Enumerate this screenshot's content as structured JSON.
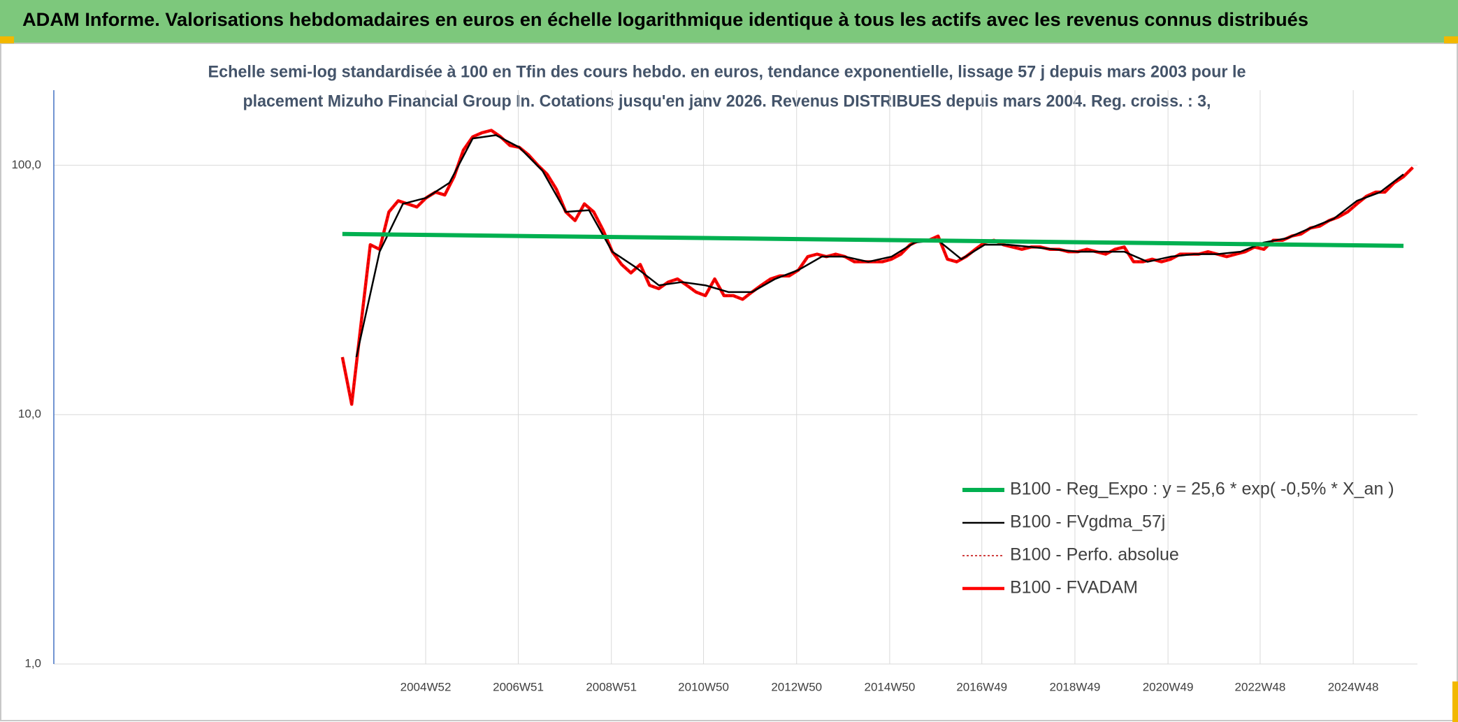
{
  "chart_data": {
    "type": "line",
    "title": "ADAM Informe. Valorisations hebdomadaires en euros en échelle logarithmique identique à tous les actifs avec les revenus connus distribués",
    "subtitle": [
      "Echelle semi-log standardisée à 100 en Tfin des cours hebdo. en euros, tendance exponentielle, lissage 57 j depuis mars 2003 pour le",
      "placement Mizuho Financial Group In. Cotations jusqu'en janv 2026. Revenus DISTRIBUES depuis mars 2004. Reg. croiss. : 3,"
    ],
    "log_scale": true,
    "grid": true,
    "legend": "lower right",
    "xlim": [
      1997,
      2026.3
    ],
    "ylim": [
      1,
      200
    ],
    "yticks": [
      {
        "value": 1,
        "label": "1,0"
      },
      {
        "value": 10,
        "label": "10,0"
      },
      {
        "value": 100,
        "label": "100,0"
      }
    ],
    "xticks": [
      {
        "value": 2004.99,
        "label": "2004W52"
      },
      {
        "value": 2006.98,
        "label": "2006W51"
      },
      {
        "value": 2008.98,
        "label": "2008W51"
      },
      {
        "value": 2010.96,
        "label": "2010W50"
      },
      {
        "value": 2012.96,
        "label": "2012W50"
      },
      {
        "value": 2014.96,
        "label": "2014W50"
      },
      {
        "value": 2016.94,
        "label": "2016W49"
      },
      {
        "value": 2018.94,
        "label": "2018W49"
      },
      {
        "value": 2020.94,
        "label": "2020W49"
      },
      {
        "value": 2022.92,
        "label": "2022W48"
      },
      {
        "value": 2024.92,
        "label": "2024W48"
      }
    ],
    "x": [
      2003.2,
      2003.4,
      2003.6,
      2003.8,
      2004,
      2004.2,
      2004.4,
      2004.6,
      2004.8,
      2005,
      2005.2,
      2005.4,
      2005.6,
      2005.8,
      2006,
      2006.2,
      2006.4,
      2006.6,
      2006.8,
      2007,
      2007.2,
      2007.4,
      2007.6,
      2007.8,
      2008,
      2008.2,
      2008.4,
      2008.6,
      2008.8,
      2009,
      2009.2,
      2009.4,
      2009.6,
      2009.8,
      2010,
      2010.2,
      2010.4,
      2010.6,
      2010.8,
      2011,
      2011.2,
      2011.4,
      2011.6,
      2011.8,
      2012,
      2012.2,
      2012.4,
      2012.6,
      2012.8,
      2013,
      2013.2,
      2013.4,
      2013.6,
      2013.8,
      2014,
      2014.2,
      2014.4,
      2014.6,
      2014.8,
      2015,
      2015.2,
      2015.4,
      2015.6,
      2015.8,
      2016,
      2016.2,
      2016.4,
      2016.6,
      2016.8,
      2017,
      2017.2,
      2017.4,
      2017.6,
      2017.8,
      2018,
      2018.2,
      2018.4,
      2018.6,
      2018.8,
      2019,
      2019.2,
      2019.4,
      2019.6,
      2019.8,
      2020,
      2020.2,
      2020.4,
      2020.6,
      2020.8,
      2021,
      2021.2,
      2021.4,
      2021.6,
      2021.8,
      2022,
      2022.2,
      2022.4,
      2022.6,
      2022.8,
      2023,
      2023.2,
      2023.4,
      2023.6,
      2023.8,
      2024,
      2024.2,
      2024.4,
      2024.6,
      2024.8,
      2025,
      2025.2,
      2025.4,
      2025.6,
      2025.8,
      2026,
      2026.2
    ],
    "series": [
      {
        "name": "B100 - Reg_Expo : y = 25,6 * exp( -0,5% *  X_an )",
        "color": "#00b050",
        "line_style": "solid",
        "x": [
          2003.2,
          2026.0
        ],
        "values": [
          53,
          47.5
        ]
      },
      {
        "name": "B100 - FVgdma_57j",
        "color": "#000000",
        "line_style": "solid",
        "x": [
          2003.5,
          2004,
          2004.5,
          2005,
          2005.5,
          2006,
          2006.5,
          2007,
          2007.5,
          2008,
          2008.5,
          2009,
          2009.5,
          2010,
          2010.5,
          2011,
          2011.5,
          2012,
          2012.5,
          2013,
          2013.5,
          2014,
          2014.5,
          2015,
          2015.5,
          2016,
          2016.5,
          2017,
          2017.5,
          2018,
          2018.5,
          2019,
          2019.5,
          2020,
          2020.5,
          2021,
          2021.5,
          2022,
          2022.5,
          2023,
          2023.5,
          2024,
          2024.5,
          2025,
          2025.5,
          2026
        ],
        "values": [
          17,
          45,
          70,
          74,
          85,
          128,
          132,
          118,
          95,
          65,
          66,
          45,
          39,
          33,
          34,
          33,
          31,
          31,
          35,
          38,
          43,
          43,
          41,
          43,
          49,
          50,
          42,
          48,
          48,
          47,
          46,
          45,
          45,
          45,
          41,
          43,
          44,
          44,
          45,
          49,
          51,
          56,
          61,
          72,
          78,
          92
        ]
      },
      {
        "name": "B100 - Perfo. absolue",
        "color": "#c00000",
        "line_style": "dotted",
        "values": [
          17,
          11,
          23,
          48,
          46,
          65,
          72,
          70,
          68,
          74,
          78,
          76,
          90,
          115,
          130,
          135,
          138,
          130,
          120,
          118,
          110,
          100,
          92,
          80,
          65,
          60,
          70,
          65,
          55,
          45,
          40,
          37,
          40,
          33,
          32,
          34,
          35,
          33,
          31,
          30,
          35,
          30,
          30,
          29,
          31,
          33,
          35,
          36,
          36,
          38,
          43,
          44,
          43,
          44,
          43,
          41,
          41,
          41,
          41,
          42,
          44,
          48,
          50,
          50,
          52,
          42,
          41,
          43,
          46,
          49,
          50,
          48,
          47,
          46,
          47,
          47,
          46,
          46,
          45,
          45,
          46,
          45,
          44,
          46,
          47,
          41,
          41,
          42,
          41,
          42,
          44,
          44,
          44,
          45,
          44,
          43,
          44,
          45,
          47,
          46,
          50,
          50,
          52,
          53,
          56,
          57,
          60,
          62,
          65,
          70,
          75,
          78,
          78,
          85,
          90,
          98
        ]
      },
      {
        "name": "B100 - FVADAM",
        "color": "#ff0000",
        "line_style": "solid",
        "values": [
          17,
          11,
          23,
          48,
          46,
          65,
          72,
          70,
          68,
          74,
          78,
          76,
          90,
          115,
          130,
          135,
          138,
          130,
          120,
          118,
          110,
          100,
          92,
          80,
          65,
          60,
          70,
          65,
          55,
          45,
          40,
          37,
          40,
          33,
          32,
          34,
          35,
          33,
          31,
          30,
          35,
          30,
          30,
          29,
          31,
          33,
          35,
          36,
          36,
          38,
          43,
          44,
          43,
          44,
          43,
          41,
          41,
          41,
          41,
          42,
          44,
          48,
          50,
          50,
          52,
          42,
          41,
          43,
          46,
          49,
          50,
          48,
          47,
          46,
          47,
          47,
          46,
          46,
          45,
          45,
          46,
          45,
          44,
          46,
          47,
          41,
          41,
          42,
          41,
          42,
          44,
          44,
          44,
          45,
          44,
          43,
          44,
          45,
          47,
          46,
          50,
          50,
          52,
          53,
          56,
          57,
          60,
          62,
          65,
          70,
          75,
          78,
          78,
          85,
          90,
          98
        ]
      }
    ]
  }
}
